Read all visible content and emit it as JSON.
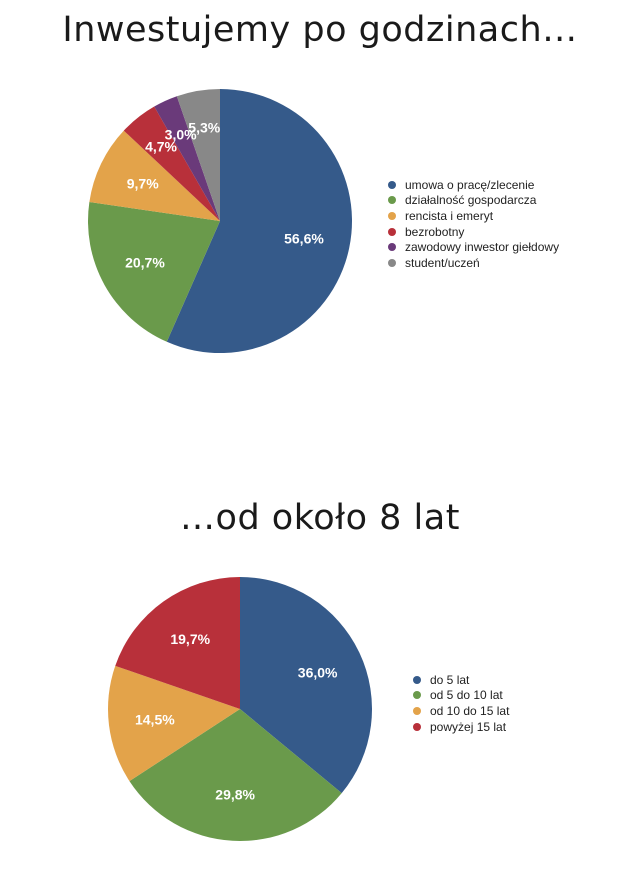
{
  "chart_data": [
    {
      "type": "pie",
      "title": "Inwestujemy po godzinach…",
      "labels": [
        "umowa o pracę/zlecenie",
        "działalność gospodarcza",
        "rencista i emeryt",
        "bezrobotny",
        "zawodowy inwestor giełdowy",
        "student/uczeń"
      ],
      "values": [
        56.6,
        20.7,
        9.7,
        4.7,
        3.0,
        5.3
      ],
      "value_labels": [
        "56,6%",
        "20,7%",
        "9,7%",
        "4,7%",
        "3,0%",
        "5,3%"
      ],
      "colors": [
        "#355a8a",
        "#6a9a4b",
        "#e3a34a",
        "#b8303a",
        "#6a3a7a",
        "#888888"
      ],
      "legend_position": "right"
    },
    {
      "type": "pie",
      "title": "…od około 8 lat",
      "labels": [
        "do 5 lat",
        "od 5 do 10 lat",
        "od 10 do 15 lat",
        "powyżej 15 lat"
      ],
      "values": [
        36.0,
        29.8,
        14.5,
        19.7
      ],
      "value_labels": [
        "36,0%",
        "29,8%",
        "14,5%",
        "19,7%"
      ],
      "colors": [
        "#355a8a",
        "#6a9a4b",
        "#e3a34a",
        "#b8303a"
      ],
      "legend_position": "right"
    }
  ]
}
